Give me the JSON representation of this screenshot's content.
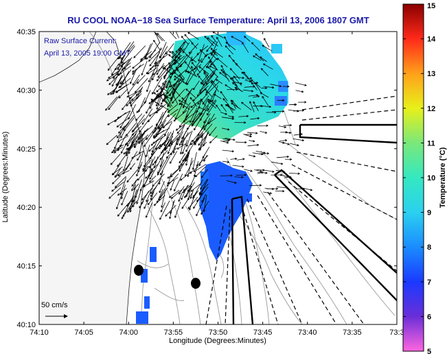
{
  "title": "RU COOL  NOAA−18  Sea Surface Temperature:  April 13, 2006 1807 GMT",
  "annotation": {
    "line1": "Raw Surface Current:",
    "line2": "April 13, 2005 19:00 GMT"
  },
  "scale_label": "50 cm/s",
  "axes": {
    "xlabel": "Longitude (Degrees:Minutes)",
    "ylabel": "Latitude (Degrees:Minutes)",
    "xticks": [
      "74:10",
      "74:05",
      "74:00",
      "73:55",
      "73:50",
      "73:45",
      "73:40",
      "73:35",
      "73:3"
    ],
    "yticks": [
      "40:35",
      "40:30",
      "40:25",
      "40:20",
      "40:15",
      "40:10"
    ]
  },
  "colorbar": {
    "label": "Temperature (°C)",
    "ticks": [
      "15",
      "14",
      "13",
      "12",
      "11",
      "10",
      "9",
      "8",
      "7",
      "6",
      "5"
    ],
    "range": [
      5,
      15
    ]
  },
  "colors": {
    "land": "#f5f5f5",
    "water": "#ffffff",
    "contour": "#9a9a9a",
    "title": "#1a1aa8",
    "sst_blue": "#1a5cff",
    "sst_cyan": "#35e3e3",
    "sst_green": "#6ee08a"
  }
}
